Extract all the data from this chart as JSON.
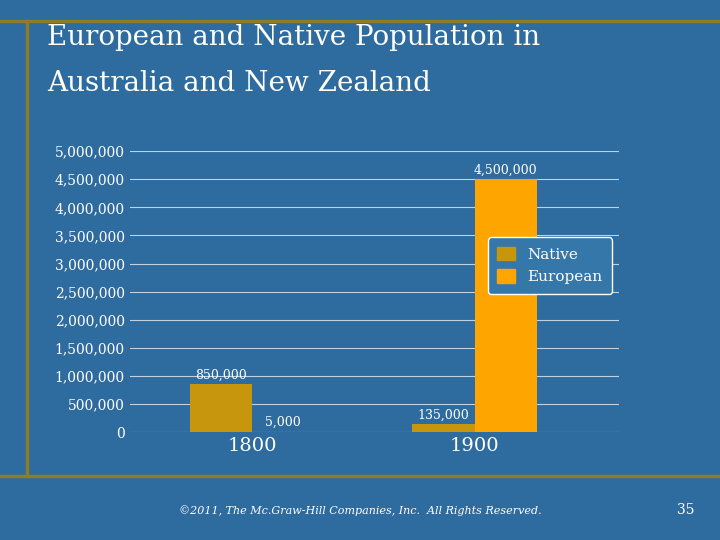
{
  "title_line1": "European and Native Population in",
  "title_line2": "Australia and New Zealand",
  "years": [
    "1800",
    "1900"
  ],
  "native": [
    850000,
    135000
  ],
  "european": [
    5000,
    4500000
  ],
  "native_color": "#C8960C",
  "european_color": "#FFA500",
  "background_color": "#2E6B9E",
  "text_color": "white",
  "ylim": [
    0,
    5000000
  ],
  "yticks": [
    0,
    500000,
    1000000,
    1500000,
    2000000,
    2500000,
    3000000,
    3500000,
    4000000,
    4500000,
    5000000
  ],
  "bar_width": 0.28,
  "bar_labels": {
    "native_1800": "850,000",
    "european_1800": "5,000",
    "native_1900": "135,000",
    "european_1900": "4,500,000"
  },
  "footer": "©2011, The Mc.Graw-Hill Companies, Inc.  All Rights Reserved.",
  "page_number": "35",
  "title_fontsize": 20,
  "axis_fontsize": 10,
  "xtick_fontsize": 14,
  "legend_fontsize": 11,
  "label_fontsize": 9,
  "footer_fontsize": 8,
  "border_color": "#8B7D2A",
  "legend_facecolor": "#3577A8"
}
